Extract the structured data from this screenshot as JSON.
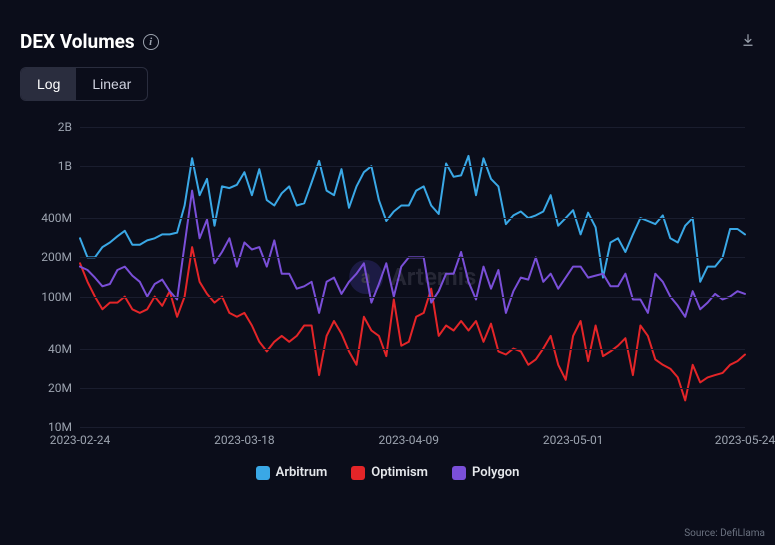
{
  "title": "DEX Volumes",
  "scale_toggle": {
    "log": "Log",
    "linear": "Linear",
    "active": "log"
  },
  "source": "Source: DefiLlama",
  "watermark": {
    "text": "Artemis",
    "logo_bg": "#5b4fd8"
  },
  "colors": {
    "background": "#0b0d1a",
    "grid": "#1a1d2e",
    "axis_text": "#9ca3af"
  },
  "chart": {
    "type": "line",
    "yscale": "log",
    "ylim": [
      10000000,
      2000000000
    ],
    "yticks": [
      {
        "v": 10000000,
        "label": "10M"
      },
      {
        "v": 20000000,
        "label": "20M"
      },
      {
        "v": 40000000,
        "label": "40M"
      },
      {
        "v": 100000000,
        "label": "100M"
      },
      {
        "v": 200000000,
        "label": "200M"
      },
      {
        "v": 400000000,
        "label": "400M"
      },
      {
        "v": 1000000000,
        "label": "1B"
      },
      {
        "v": 2000000000,
        "label": "2B"
      }
    ],
    "xticks": [
      {
        "i": 0,
        "label": "2023-02-24"
      },
      {
        "i": 22,
        "label": "2023-03-18"
      },
      {
        "i": 44,
        "label": "2023-04-09"
      },
      {
        "i": 66,
        "label": "2023-05-01"
      },
      {
        "i": 89,
        "label": "2023-05-24"
      }
    ],
    "n_points": 90,
    "line_width": 2,
    "series": [
      {
        "name": "Arbitrum",
        "color": "#3aa8e6",
        "values": [
          280,
          200,
          200,
          240,
          260,
          290,
          320,
          250,
          250,
          270,
          280,
          300,
          300,
          310,
          500,
          1150,
          600,
          800,
          350,
          700,
          680,
          720,
          900,
          600,
          950,
          550,
          500,
          620,
          700,
          500,
          520,
          750,
          1100,
          650,
          600,
          950,
          480,
          700,
          900,
          1000,
          550,
          380,
          450,
          500,
          500,
          650,
          700,
          500,
          430,
          1050,
          830,
          850,
          1200,
          600,
          1150,
          800,
          700,
          360,
          420,
          450,
          400,
          420,
          450,
          600,
          350,
          400,
          460,
          300,
          440,
          340,
          140,
          260,
          280,
          220,
          300,
          400,
          380,
          360,
          420,
          280,
          260,
          350,
          400,
          130,
          170,
          170,
          200,
          330,
          330,
          300
        ]
      },
      {
        "name": "Optimism",
        "color": "#e42528",
        "values": [
          180,
          130,
          100,
          80,
          90,
          90,
          100,
          80,
          75,
          80,
          100,
          85,
          110,
          70,
          100,
          240,
          130,
          105,
          90,
          100,
          75,
          70,
          75,
          60,
          45,
          38,
          45,
          50,
          45,
          50,
          60,
          60,
          25,
          50,
          65,
          52,
          38,
          30,
          70,
          55,
          50,
          35,
          95,
          42,
          45,
          70,
          75,
          115,
          50,
          60,
          55,
          65,
          55,
          65,
          45,
          62,
          38,
          36,
          40,
          38,
          30,
          33,
          40,
          50,
          30,
          23,
          50,
          65,
          32,
          60,
          35,
          38,
          42,
          48,
          25,
          60,
          50,
          33,
          30,
          28,
          24,
          16,
          30,
          22,
          24,
          25,
          26,
          30,
          32,
          36
        ]
      },
      {
        "name": "Polygon",
        "color": "#7a4fd8",
        "values": [
          170,
          160,
          140,
          120,
          125,
          160,
          170,
          145,
          130,
          100,
          125,
          135,
          110,
          95,
          250,
          650,
          280,
          390,
          180,
          220,
          280,
          170,
          260,
          230,
          240,
          170,
          270,
          150,
          150,
          115,
          120,
          130,
          75,
          130,
          140,
          105,
          130,
          150,
          180,
          90,
          125,
          180,
          100,
          170,
          200,
          200,
          200,
          90,
          110,
          150,
          150,
          220,
          130,
          95,
          170,
          115,
          160,
          75,
          110,
          140,
          135,
          200,
          130,
          150,
          115,
          140,
          170,
          170,
          140,
          145,
          150,
          120,
          120,
          150,
          95,
          95,
          75,
          150,
          130,
          100,
          85,
          70,
          110,
          80,
          90,
          105,
          95,
          100,
          110,
          105
        ]
      }
    ]
  },
  "legend": [
    {
      "label": "Arbitrum",
      "color": "#3aa8e6"
    },
    {
      "label": "Optimism",
      "color": "#e42528"
    },
    {
      "label": "Polygon",
      "color": "#7a4fd8"
    }
  ]
}
